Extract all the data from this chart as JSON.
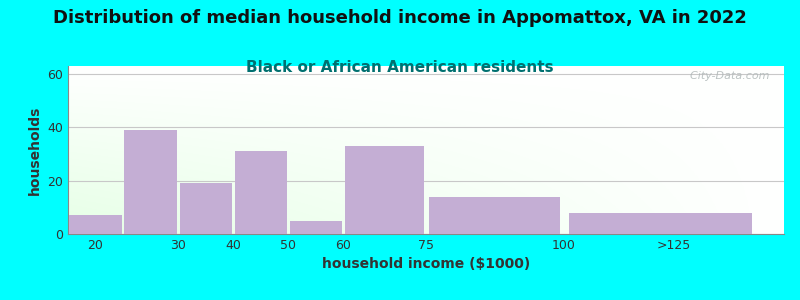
{
  "title": "Distribution of median household income in Appomattox, VA in 2022",
  "subtitle": "Black or African American residents",
  "xlabel": "household income ($1000)",
  "ylabel": "households",
  "categories": [
    "20",
    "30",
    "40",
    "50",
    "60",
    "75",
    "100",
    ">125"
  ],
  "bar_lefts": [
    10,
    20,
    30,
    40,
    50,
    60,
    75,
    100
  ],
  "bar_rights": [
    20,
    30,
    40,
    50,
    60,
    75,
    100,
    135
  ],
  "values": [
    7,
    39,
    19,
    31,
    5,
    33,
    14,
    8
  ],
  "bar_color": "#c4aed4",
  "ylim": [
    0,
    63
  ],
  "yticks": [
    0,
    20,
    40,
    60
  ],
  "xtick_positions": [
    15,
    30,
    40,
    50,
    60,
    75,
    100,
    120
  ],
  "xtick_labels": [
    "20",
    "30",
    "40",
    "50",
    "60",
    "75",
    "100",
    ">125"
  ],
  "xlim": [
    10,
    140
  ],
  "background_color": "#00ffff",
  "title_fontsize": 13,
  "subtitle_fontsize": 11,
  "subtitle_color": "#007070",
  "axis_label_fontsize": 10,
  "tick_fontsize": 9,
  "grid_color": "#c8c8c8",
  "watermark_text": "  City-Data.com",
  "watermark_color": "#b0b8b8"
}
